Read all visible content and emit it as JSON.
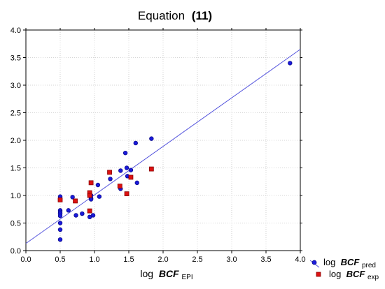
{
  "chart_data": {
    "type": "scatter",
    "title": "Equation",
    "title_bold": "(11)",
    "xlabel": {
      "prefix": "log ",
      "main": "BCF",
      "sub": "EPI"
    },
    "ylabel": "",
    "xlim": [
      0.0,
      4.0
    ],
    "ylim": [
      0.0,
      4.0
    ],
    "x_ticks": [
      "0.0",
      "0.5",
      "1.0",
      "1.5",
      "2.0",
      "2.5",
      "3.0",
      "3.5",
      "4.0"
    ],
    "y_ticks": [
      "0.0",
      "0.5",
      "1.0",
      "1.5",
      "2.0",
      "2.5",
      "3.0",
      "3.5",
      "4.0"
    ],
    "grid": true,
    "legend_position": "bottom-right",
    "fit_line": {
      "intercept": 0.13,
      "slope": 0.88,
      "color": "#5555dd"
    },
    "series": [
      {
        "name": "log BCF pred",
        "legend_prefix": "log ",
        "legend_main": "BCF",
        "legend_sub": "pred",
        "marker": "circle",
        "color": "#1a1adc",
        "points": [
          [
            0.5,
            0.98
          ],
          [
            0.5,
            0.92
          ],
          [
            0.5,
            0.73
          ],
          [
            0.5,
            0.7
          ],
          [
            0.5,
            0.67
          ],
          [
            0.5,
            0.63
          ],
          [
            0.5,
            0.5
          ],
          [
            0.5,
            0.38
          ],
          [
            0.5,
            0.2
          ],
          [
            0.62,
            0.73
          ],
          [
            0.68,
            0.97
          ],
          [
            0.73,
            0.64
          ],
          [
            0.82,
            0.67
          ],
          [
            0.93,
            0.61
          ],
          [
            0.95,
            1.0
          ],
          [
            0.95,
            0.95
          ],
          [
            0.95,
            0.93
          ],
          [
            0.98,
            0.64
          ],
          [
            1.05,
            1.19
          ],
          [
            1.07,
            0.98
          ],
          [
            1.23,
            1.3
          ],
          [
            1.38,
            1.45
          ],
          [
            1.38,
            1.12
          ],
          [
            1.45,
            1.77
          ],
          [
            1.47,
            1.5
          ],
          [
            1.48,
            1.35
          ],
          [
            1.53,
            1.46
          ],
          [
            1.6,
            1.95
          ],
          [
            1.62,
            1.23
          ],
          [
            1.83,
            2.03
          ],
          [
            3.85,
            3.4
          ]
        ]
      },
      {
        "name": "log BCF exp",
        "legend_prefix": "log ",
        "legend_main": "BCF",
        "legend_sub": "exp",
        "marker": "square",
        "color": "#dd1111",
        "points": [
          [
            0.5,
            0.92
          ],
          [
            0.72,
            0.9
          ],
          [
            0.93,
            1.05
          ],
          [
            0.93,
            1.0
          ],
          [
            0.93,
            0.72
          ],
          [
            0.95,
            1.23
          ],
          [
            1.22,
            1.42
          ],
          [
            1.37,
            1.17
          ],
          [
            1.47,
            1.03
          ],
          [
            1.53,
            1.33
          ],
          [
            1.83,
            1.48
          ]
        ]
      }
    ]
  }
}
